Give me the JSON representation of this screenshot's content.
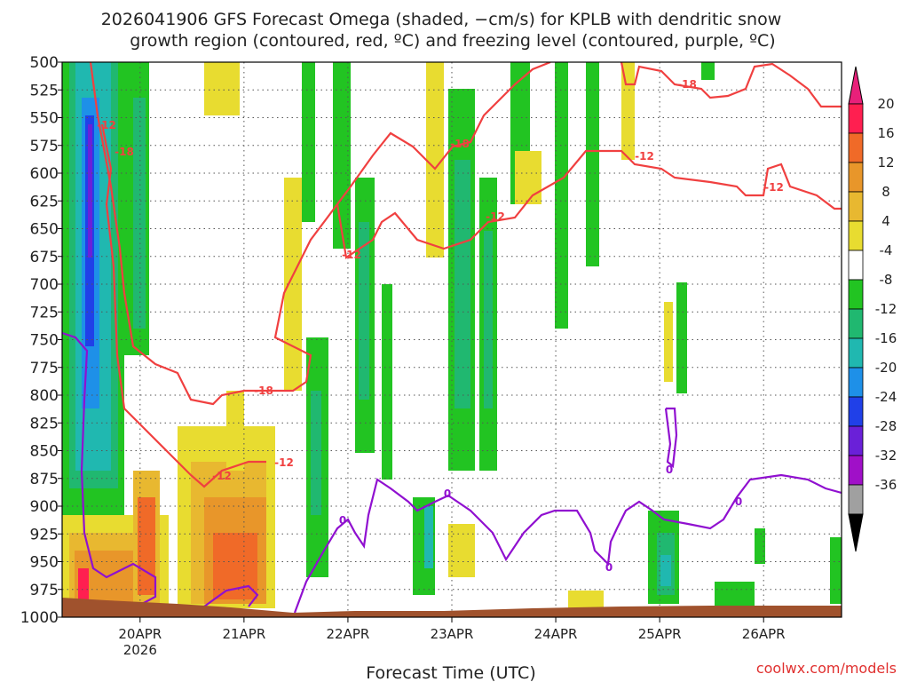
{
  "chart_data": {
    "type": "heatmap",
    "title_line1": "2026041906 GFS Forecast Omega (shaded, −cm/s) for KPLB with dendritic snow",
    "title_line2": "growth region (contoured, red, ºC) and freezing level (contoured, purple, ºC)",
    "xlabel": "Forecast Time (UTC)",
    "credit": "coolwx.com/models",
    "y_ticks": [
      "500",
      "525",
      "550",
      "575",
      "600",
      "625",
      "650",
      "675",
      "700",
      "725",
      "750",
      "775",
      "800",
      "825",
      "850",
      "875",
      "900",
      "925",
      "950",
      "975",
      "1000"
    ],
    "ylim": [
      1000,
      500
    ],
    "x_ticks": [
      {
        "label": "20APR",
        "sub": "2026",
        "day": 1
      },
      {
        "label": "21APR",
        "sub": "",
        "day": 2
      },
      {
        "label": "22APR",
        "sub": "",
        "day": 3
      },
      {
        "label": "23APR",
        "sub": "",
        "day": 4
      },
      {
        "label": "24APR",
        "sub": "",
        "day": 5
      },
      {
        "label": "25APR",
        "sub": "",
        "day": 6
      },
      {
        "label": "26APR",
        "sub": "",
        "day": 7
      }
    ],
    "xlim_days": [
      0.25,
      7.75
    ],
    "grid": true,
    "colorbar": {
      "labels": [
        "20",
        "16",
        "12",
        "8",
        "4",
        "-4",
        "-8",
        "-12",
        "-16",
        "-20",
        "-24",
        "-28",
        "-32",
        "-36"
      ],
      "colors": [
        "#ff1f50",
        "#f06a28",
        "#e8962a",
        "#e8b830",
        "#e8dc30",
        "#ffffff",
        "#22c422",
        "#20b870",
        "#20b8b0",
        "#1e90e8",
        "#2040e8",
        "#6a20d8",
        "#a010c8",
        "#a0a0a0"
      ],
      "top_color": "#e8207a",
      "bottom_color": "#000000"
    },
    "red_contour_labels": [
      "-12",
      "-18",
      "-12",
      "-18",
      "-12",
      "-18",
      "-12",
      "-12",
      "-18",
      "-12",
      "-12"
    ],
    "purple_contour_labels": [
      "0",
      "0",
      "0",
      "0",
      "0"
    ],
    "colors": {
      "red_contour": "#f04040",
      "purple_contour": "#9010d0",
      "ground": "#a0522d"
    }
  }
}
